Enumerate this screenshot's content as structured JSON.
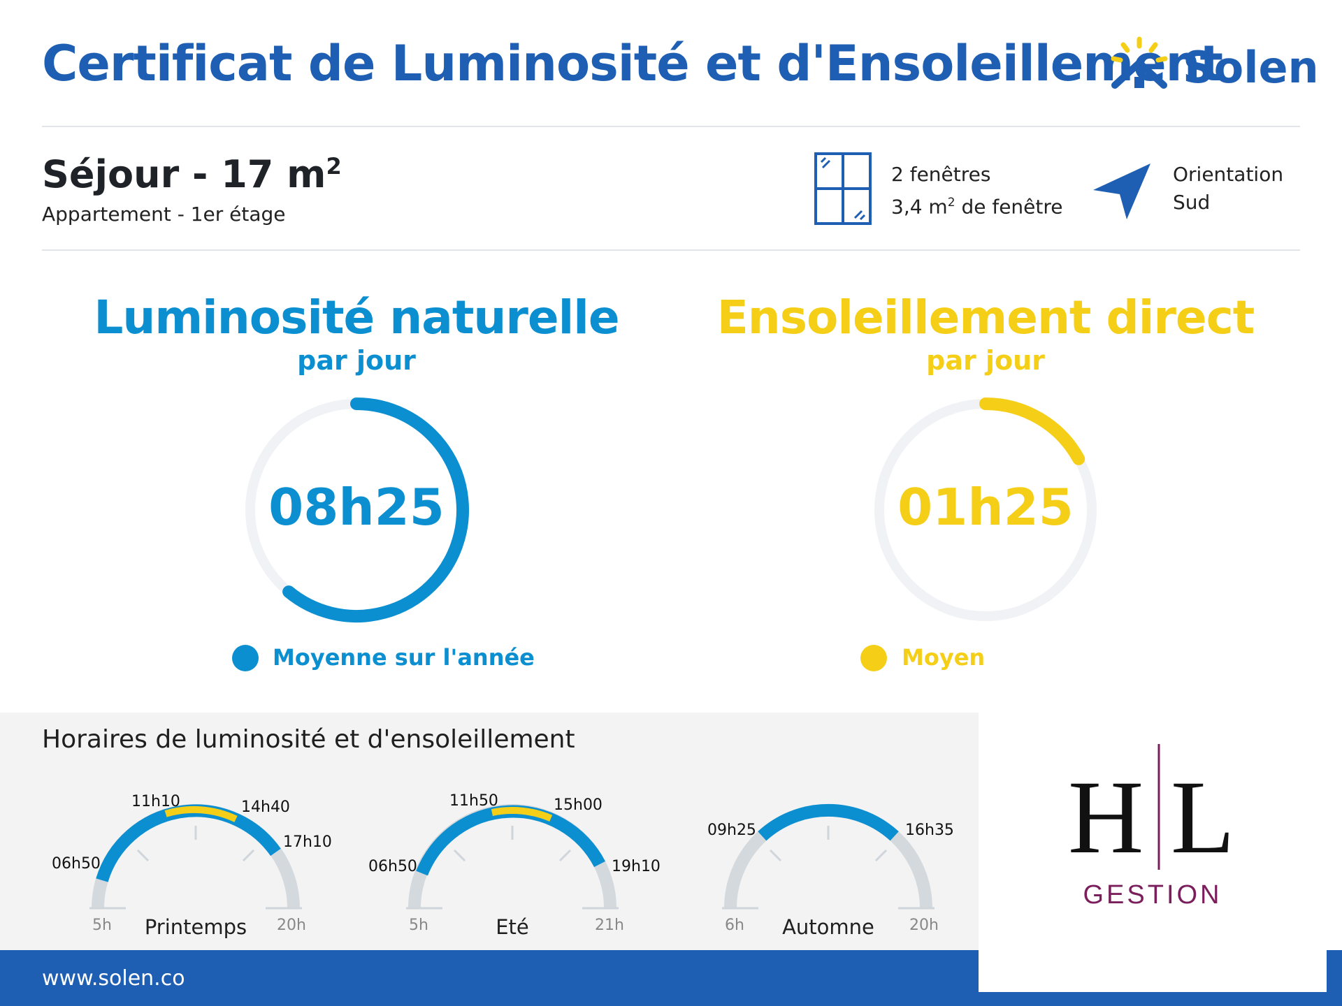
{
  "header": {
    "title": "Certificat de Luminosité et d'Ensoleillement",
    "brand": "Solen",
    "brand_color": "#1e5fb3",
    "brand_accent": "#f5cf17"
  },
  "room": {
    "name": "Séjour - 17 m",
    "name_exponent": "2",
    "subtitle": "Appartement - 1er étage"
  },
  "windows": {
    "icon": "window-icon",
    "line1": "2 fenêtres",
    "line2_prefix": "3,4 m",
    "line2_exponent": "2",
    "line2_suffix": " de fenêtre"
  },
  "orientation": {
    "icon": "navigation-arrow-icon",
    "line1": "Orientation",
    "line2": "Sud"
  },
  "luminosity": {
    "title": "Luminosité naturelle",
    "subtitle": "par jour",
    "value": "08h25",
    "fraction": 0.61,
    "color": "#0b8fd0",
    "legend": "Moyenne sur l'année"
  },
  "sunshine": {
    "title": "Ensoleillement direct",
    "subtitle": "par jour",
    "value": "01h25",
    "fraction": 0.17,
    "color": "#f5cf17",
    "legend": "Moyen"
  },
  "hours": {
    "title": "Horaires de luminosité et d'ensoleillement",
    "seasons": [
      {
        "name": "Printemps",
        "start_tick": "5h",
        "end_tick": "20h",
        "light_start": "06h50",
        "light_end": "17h10",
        "sun_start": "11h10",
        "sun_end": "14h40"
      },
      {
        "name": "Eté",
        "start_tick": "5h",
        "end_tick": "21h",
        "light_start": "06h50",
        "light_end": "19h10",
        "sun_start": "11h50",
        "sun_end": "15h00"
      },
      {
        "name": "Automne",
        "start_tick": "6h",
        "end_tick": "20h",
        "light_start": "09h25",
        "light_end": "16h35",
        "sun_start": "",
        "sun_end": ""
      }
    ]
  },
  "agency": {
    "logo_letters": "H|L",
    "name": "GESTION",
    "color": "#7a1f5c"
  },
  "footer": {
    "url": "www.solen.co"
  }
}
